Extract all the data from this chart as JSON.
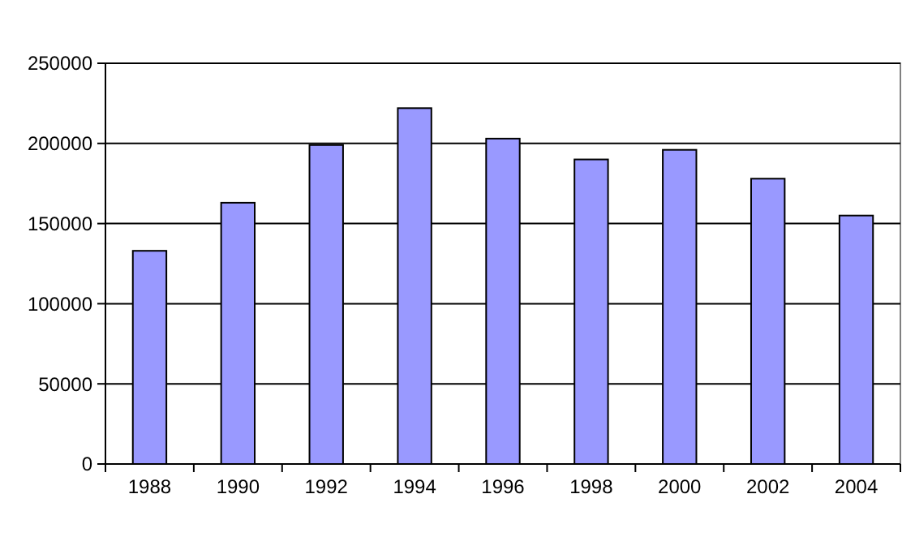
{
  "chart_data": {
    "type": "bar",
    "categories": [
      "1988",
      "1990",
      "1992",
      "1994",
      "1996",
      "1998",
      "2000",
      "2002",
      "2004"
    ],
    "values": [
      133000,
      163000,
      199000,
      222000,
      203000,
      190000,
      196000,
      178000,
      155000
    ],
    "color": "#9999ff",
    "ylim": [
      0,
      250000
    ],
    "yticks": [
      0,
      50000,
      100000,
      150000,
      200000,
      250000
    ],
    "grid": "y"
  }
}
